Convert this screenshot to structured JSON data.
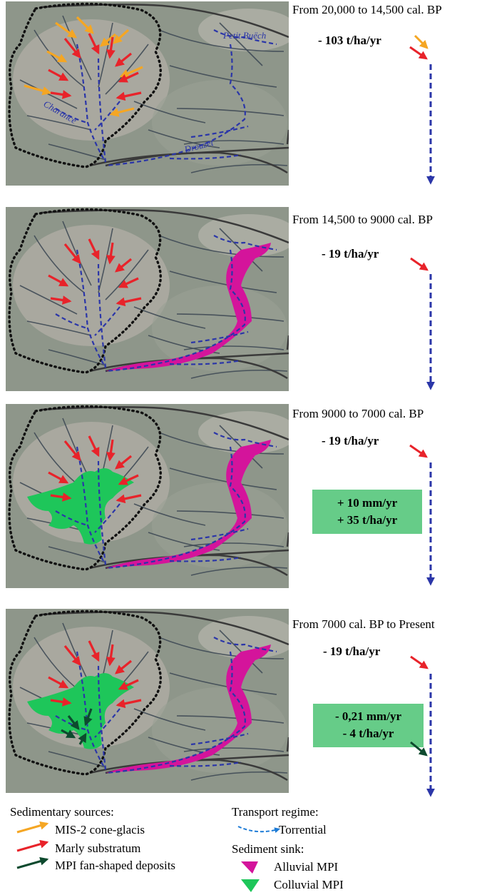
{
  "panels": [
    {
      "period": "From 20,000 to 14,500 cal. BP",
      "rate": "- 103 t/ha/yr",
      "box": null,
      "sources": [
        "orange",
        "red"
      ],
      "alluvial": false,
      "colluvial": false,
      "mpi_fan": false,
      "places": [
        "Petit Buëch",
        "Charance",
        "Drouzet"
      ]
    },
    {
      "period": "From 14,500 to 9000 cal. BP",
      "rate": "- 19 t/ha/yr",
      "box": null,
      "sources": [
        "red"
      ],
      "alluvial": true,
      "colluvial": false,
      "mpi_fan": false,
      "places": []
    },
    {
      "period": "From 9000 to 7000 cal. BP",
      "rate": "- 19 t/ha/yr",
      "box": {
        "line1": "+ 10 mm/yr",
        "line2": "+ 35 t/ha/yr"
      },
      "sources": [
        "red"
      ],
      "alluvial": true,
      "colluvial": true,
      "mpi_fan": false,
      "places": []
    },
    {
      "period": "From 7000 cal. BP to Present",
      "rate": "- 19 t/ha/yr",
      "box": {
        "line1": "- 0,21 mm/yr",
        "line2": "- 4 t/ha/yr"
      },
      "sources": [
        "red"
      ],
      "alluvial": true,
      "colluvial": true,
      "mpi_fan": true,
      "places": []
    }
  ],
  "legend": {
    "sources_title": "Sedimentary sources:",
    "source_items": [
      {
        "label": "MIS-2 cone-glacis",
        "color": "#f5a623"
      },
      {
        "label": "Marly substratum",
        "color": "#e8232a"
      },
      {
        "label": "MPI fan-shaped deposits",
        "color": "#0d4a2e"
      }
    ],
    "transport_title": "Transport regime:",
    "transport_item": "Torrential",
    "sink_title": "Sediment sink:",
    "sink_items": [
      {
        "label": "Alluvial MPI",
        "color": "#d4149b"
      },
      {
        "label": "Colluvial MPI",
        "color": "#1ec65a"
      }
    ]
  },
  "colors": {
    "orange": "#f5a623",
    "red": "#e8232a",
    "dark_green": "#0d4a2e",
    "magenta": "#d4149b",
    "green": "#1ec65a",
    "blue": "#2b36a8",
    "box_green": "#66cc88"
  }
}
